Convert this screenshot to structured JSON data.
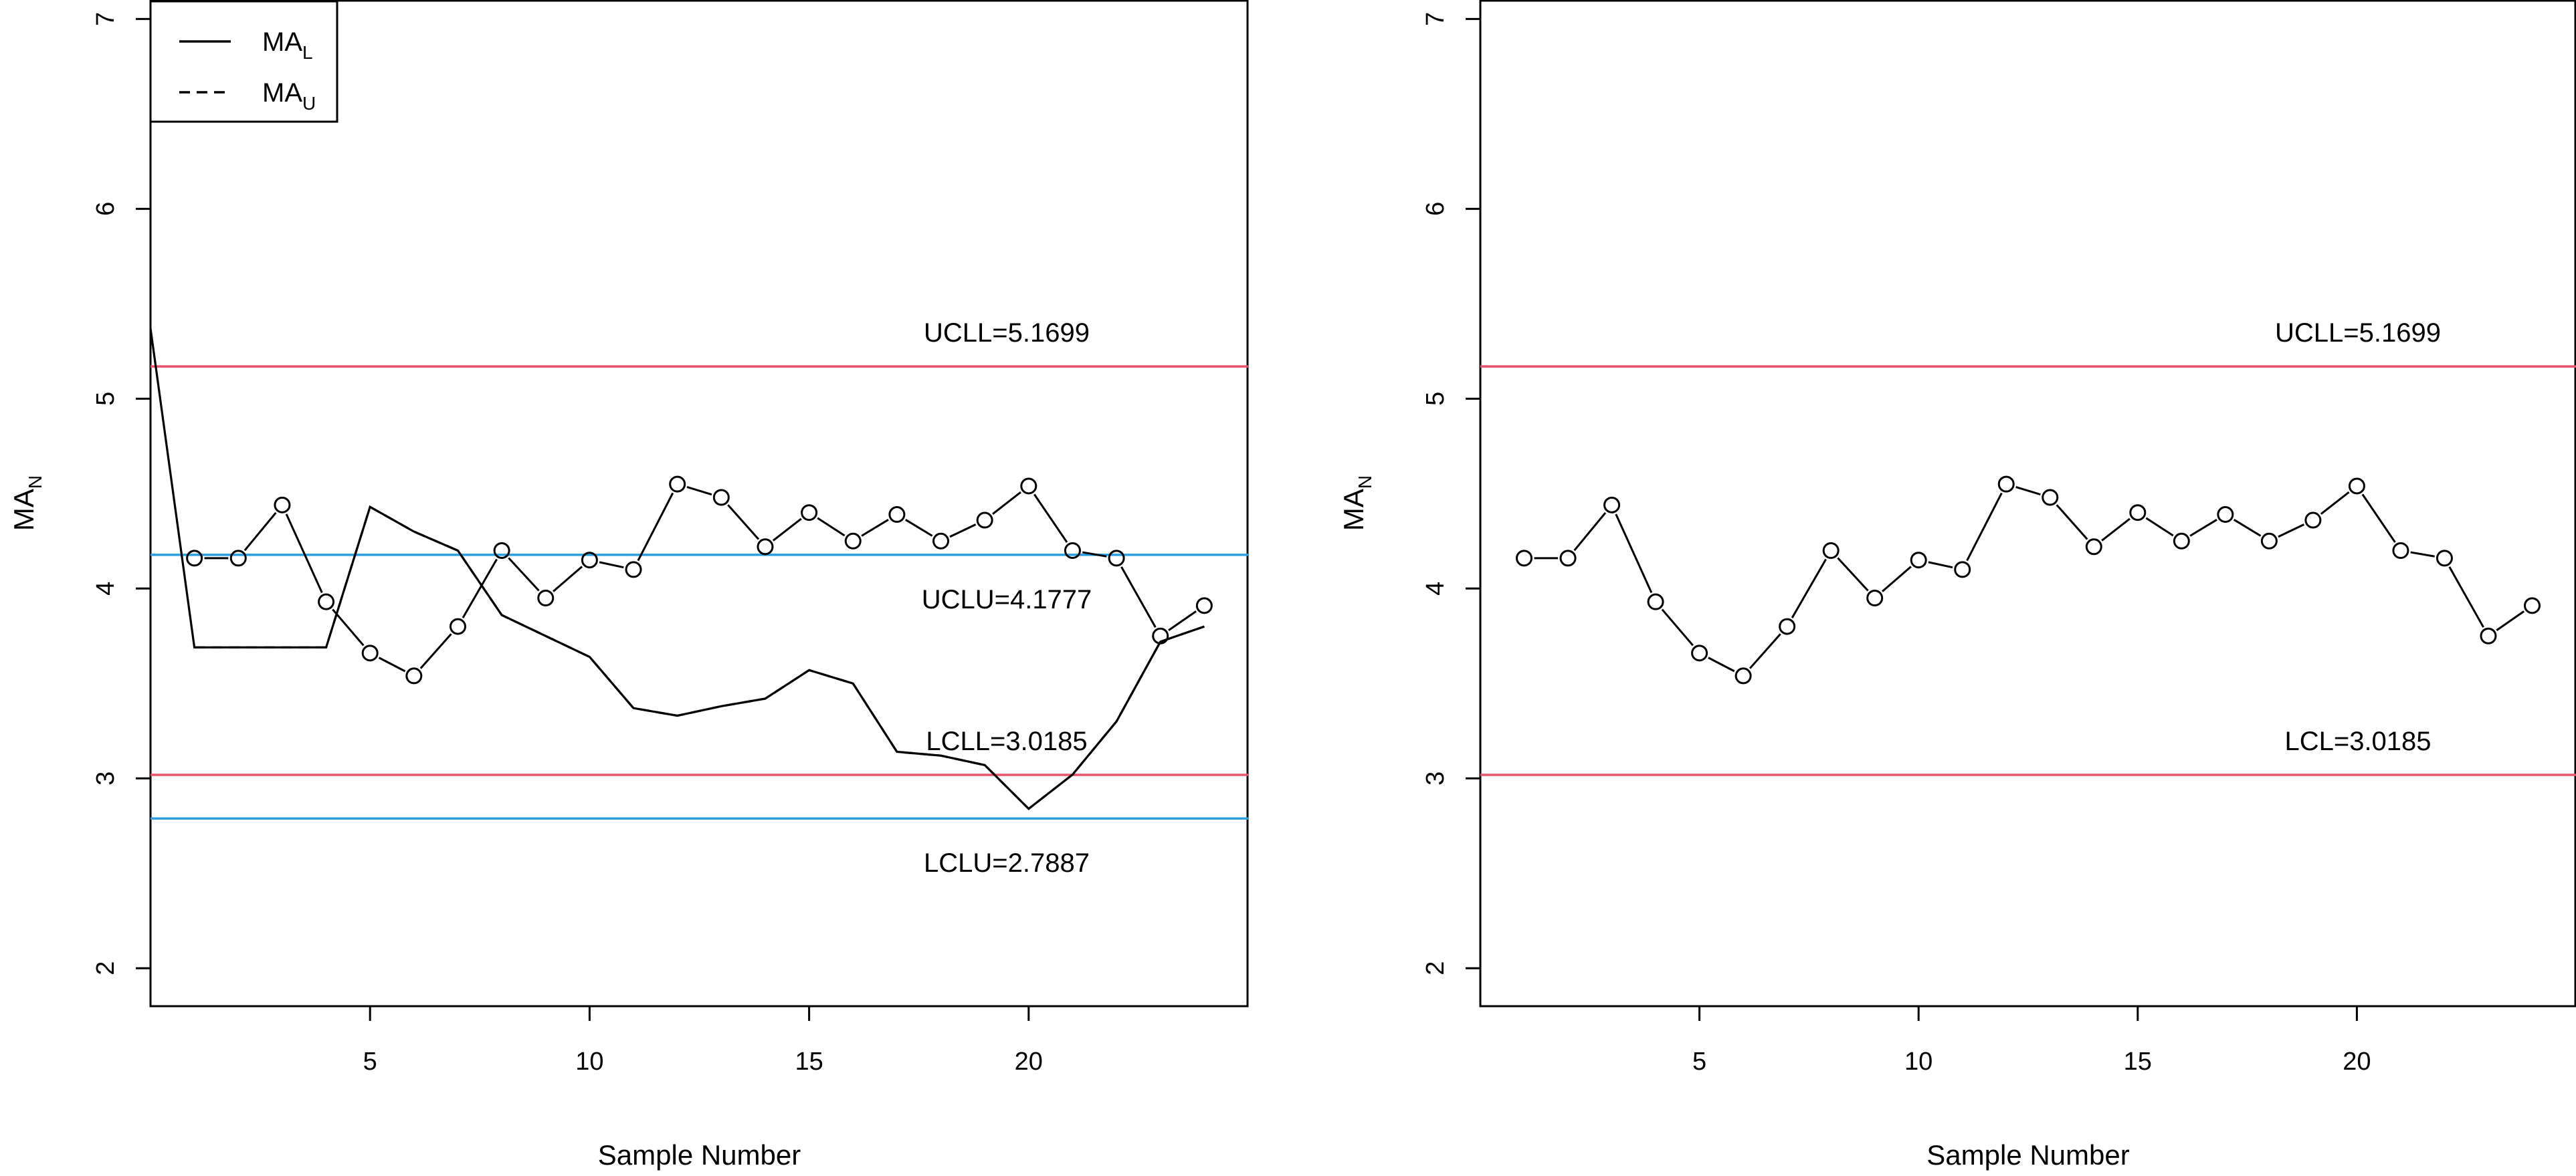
{
  "chart_data": [
    {
      "type": "line",
      "panel": "left",
      "xlabel": "Sample Number",
      "ylabel_main": "MA",
      "ylabel_sub": "N",
      "xlim": [
        0,
        25
      ],
      "ylim": [
        1.8,
        7.1
      ],
      "xticks": [
        5,
        10,
        15,
        20
      ],
      "yticks": [
        2,
        3,
        4,
        5,
        6,
        7
      ],
      "grid": false,
      "legend_position": "top-left",
      "legend": [
        {
          "main": "MA",
          "sub": "L",
          "style": "solid"
        },
        {
          "main": "MA",
          "sub": "U",
          "style": "dashed"
        }
      ],
      "series": [
        {
          "style": "points-connected",
          "x": [
            1,
            2,
            3,
            4,
            5,
            6,
            7,
            8,
            9,
            10,
            11,
            12,
            13,
            14,
            15,
            16,
            17,
            18,
            19,
            20,
            21,
            22,
            23,
            24
          ],
          "values": [
            4.16,
            4.16,
            4.44,
            3.93,
            3.66,
            3.54,
            3.8,
            4.2,
            3.95,
            4.15,
            4.1,
            4.55,
            4.48,
            4.22,
            4.4,
            4.25,
            4.39,
            4.25,
            4.36,
            4.54,
            4.2,
            4.16,
            3.75,
            3.91
          ]
        },
        {
          "style": "solid",
          "x": [
            -1,
            1,
            2,
            3,
            4,
            5,
            6,
            7,
            8,
            9,
            10,
            11,
            12,
            13,
            14,
            15,
            16,
            17,
            18,
            19,
            20,
            21,
            22,
            23,
            24
          ],
          "values": [
            7.05,
            3.69,
            3.69,
            3.69,
            3.69,
            4.43,
            4.3,
            4.2,
            3.86,
            3.75,
            3.64,
            3.37,
            3.33,
            3.38,
            3.42,
            3.57,
            3.5,
            3.14,
            3.12,
            3.07,
            2.84,
            3.02,
            3.3,
            3.72,
            3.8
          ]
        },
        {
          "style": "dashed",
          "x": [
            1,
            2,
            3,
            4,
            5,
            6,
            7,
            8,
            9,
            10,
            11,
            12,
            13,
            14,
            15,
            16,
            17,
            18,
            19,
            20,
            21,
            22,
            23,
            24
          ],
          "values": [
            3.69,
            3.69,
            3.69,
            3.69,
            4.43,
            4.3,
            4.2,
            3.86,
            3.75,
            3.64,
            3.37,
            3.33,
            3.38,
            3.42,
            3.57,
            3.5,
            3.14,
            3.12,
            3.07,
            2.84,
            3.02,
            3.3,
            3.72,
            3.8
          ]
        }
      ],
      "reference_lines": [
        {
          "label": "UCLL=5.1699",
          "value": 5.1699,
          "color": "#e8536b"
        },
        {
          "label": "UCLU=4.1777",
          "value": 4.1777,
          "color": "#2b9fe0"
        },
        {
          "label": "LCLL=3.0185",
          "value": 3.0185,
          "color": "#e8536b"
        },
        {
          "label": "LCLU=2.7887",
          "value": 2.7887,
          "color": "#2b9fe0"
        }
      ]
    },
    {
      "type": "line",
      "panel": "right",
      "xlabel": "Sample Number",
      "ylabel_main": "MA",
      "ylabel_sub": "N",
      "xlim": [
        0,
        25
      ],
      "ylim": [
        1.8,
        7.1
      ],
      "xticks": [
        5,
        10,
        15,
        20
      ],
      "yticks": [
        2,
        3,
        4,
        5,
        6,
        7
      ],
      "grid": false,
      "series": [
        {
          "style": "points-connected",
          "x": [
            1,
            2,
            3,
            4,
            5,
            6,
            7,
            8,
            9,
            10,
            11,
            12,
            13,
            14,
            15,
            16,
            17,
            18,
            19,
            20,
            21,
            22,
            23,
            24
          ],
          "values": [
            4.16,
            4.16,
            4.44,
            3.93,
            3.66,
            3.54,
            3.8,
            4.2,
            3.95,
            4.15,
            4.1,
            4.55,
            4.48,
            4.22,
            4.4,
            4.25,
            4.39,
            4.25,
            4.36,
            4.54,
            4.2,
            4.16,
            3.75,
            3.91
          ]
        }
      ],
      "reference_lines": [
        {
          "label": "UCLL=5.1699",
          "value": 5.1699,
          "color": "#e8536b"
        },
        {
          "label": "LCL=3.0185",
          "value": 3.0185,
          "color": "#e8536b"
        }
      ]
    }
  ]
}
